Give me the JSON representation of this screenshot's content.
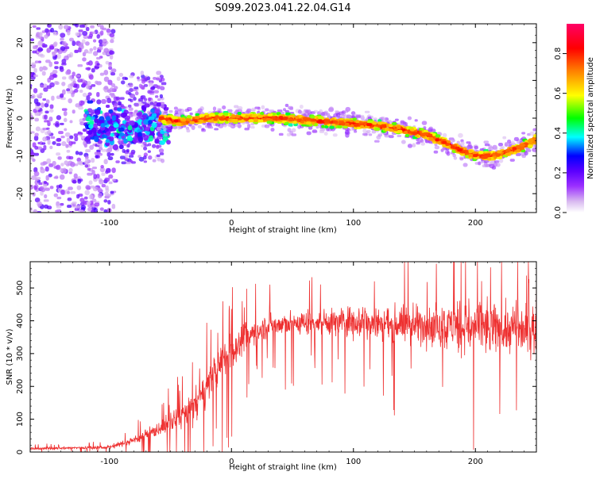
{
  "figure": {
    "title": "S099.2023.041.22.04.G14"
  },
  "chart_data": [
    {
      "type": "heatmap",
      "name": "spectrogram",
      "xlabel": "Height of straight line (km)",
      "ylabel": "Frequency (Hz)",
      "xlim": [
        -165,
        250
      ],
      "ylim": [
        -25,
        25
      ],
      "x_ticks": [
        -100,
        0,
        100,
        200
      ],
      "y_ticks": [
        -20,
        -10,
        0,
        10,
        20
      ],
      "colorbar": {
        "label": "Normalized spectral amplitude",
        "range": [
          0,
          0.95
        ],
        "ticks": [
          "0.0",
          "0.2",
          "0.4",
          "0.6",
          "0.8"
        ],
        "colors": [
          "#ffffff",
          "#d8b8f0",
          "#9b30ff",
          "#6a00ff",
          "#0000ff",
          "#00ffff",
          "#00ff00",
          "#ffff00",
          "#ff8000",
          "#ff0000",
          "#ff0066"
        ]
      },
      "ridge_x": [
        -60,
        -40,
        -20,
        0,
        20,
        40,
        60,
        80,
        100,
        120,
        140,
        160,
        175,
        185,
        195,
        205,
        215,
        225,
        235,
        245,
        250
      ],
      "ridge_y": [
        0,
        -1,
        0,
        0,
        0,
        0,
        -0.5,
        -1,
        -1.5,
        -2,
        -3,
        -4.5,
        -6.5,
        -8,
        -9.5,
        -10,
        -10,
        -9,
        -8,
        -6.5,
        -5.5
      ]
    },
    {
      "type": "line",
      "name": "snr",
      "xlabel": "Height of straight line (km)",
      "ylabel": "SNR (10 * v/v)",
      "xlim": [
        -165,
        250
      ],
      "ylim": [
        0,
        580
      ],
      "x_ticks": [
        -100,
        0,
        100,
        200
      ],
      "y_ticks": [
        0,
        100,
        200,
        300,
        400,
        500
      ],
      "color": "#ee3030",
      "envelope_x": [
        -165,
        -100,
        -85,
        -65,
        -45,
        -30,
        -20,
        -10,
        0,
        10,
        20,
        30,
        60,
        100,
        150,
        200,
        250
      ],
      "envelope_mean": [
        10,
        15,
        30,
        60,
        100,
        140,
        200,
        260,
        310,
        340,
        370,
        385,
        395,
        400,
        390,
        380,
        370
      ],
      "envelope_amp": [
        5,
        8,
        15,
        30,
        50,
        70,
        80,
        90,
        80,
        70,
        60,
        55,
        60,
        70,
        90,
        110,
        120
      ]
    }
  ]
}
